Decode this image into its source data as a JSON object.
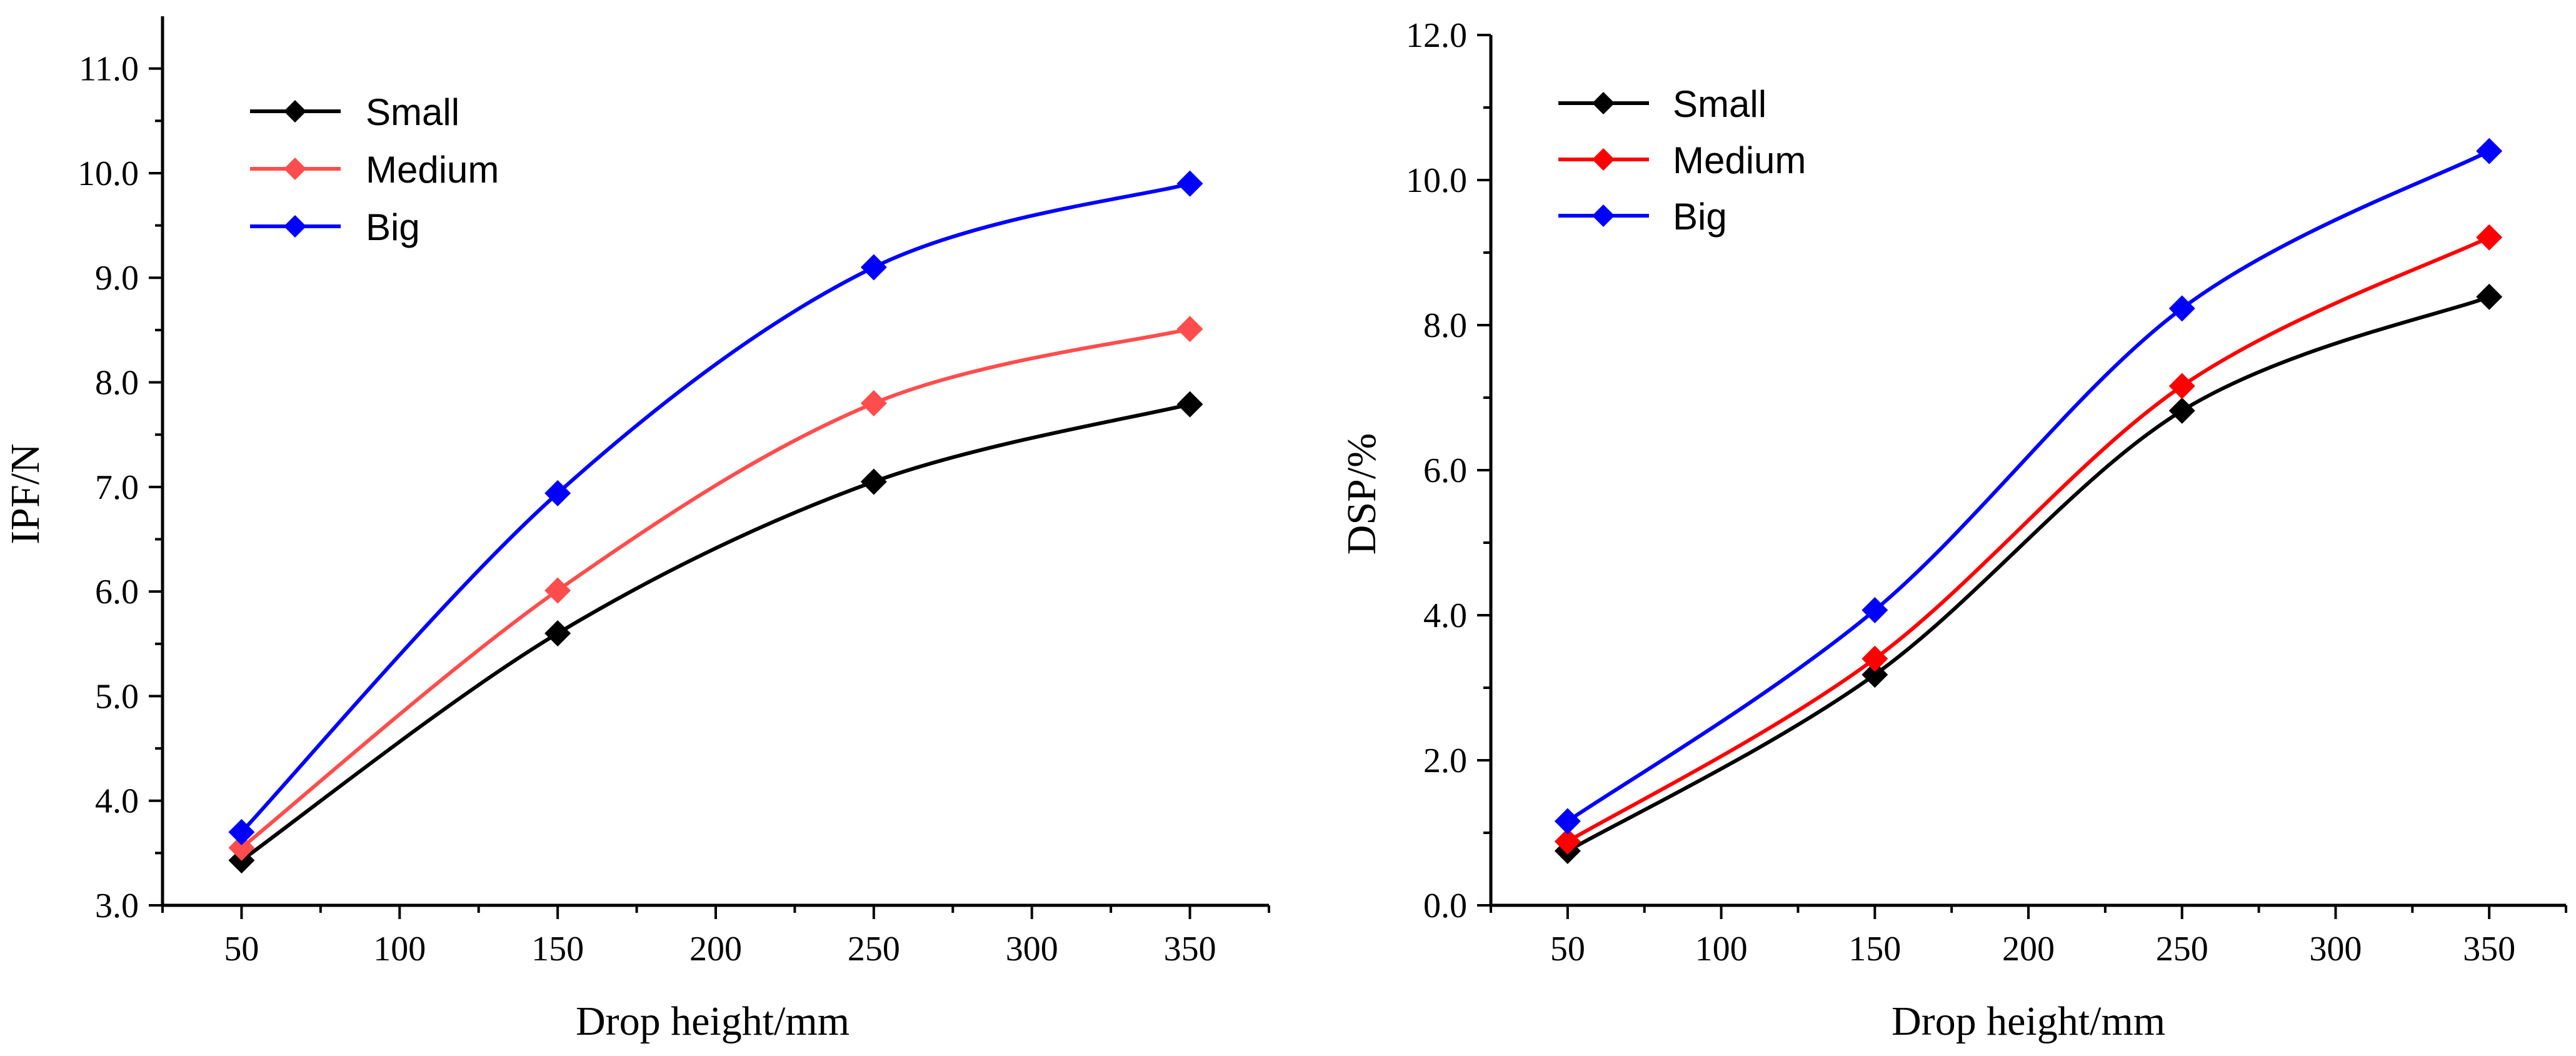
{
  "chart_data": [
    {
      "type": "line",
      "xlabel": "Drop height/mm",
      "ylabel": "IPF/N",
      "xlim": [
        25,
        375
      ],
      "ylim": [
        3.0,
        11.5
      ],
      "xticks": [
        "50",
        "100",
        "150",
        "200",
        "250",
        "300",
        "350"
      ],
      "xtick_values": [
        50,
        100,
        150,
        200,
        250,
        300,
        350
      ],
      "yticks": [
        "3.0",
        "4.0",
        "5.0",
        "6.0",
        "7.0",
        "8.0",
        "9.0",
        "10.0",
        "11.0"
      ],
      "ytick_values": [
        3,
        4,
        5,
        6,
        7,
        8,
        9,
        10,
        11
      ],
      "legend_position": "top-left",
      "x": [
        50,
        150,
        250,
        350
      ],
      "series": [
        {
          "name": "Small",
          "color": "#000000",
          "values": [
            3.43,
            5.6,
            7.05,
            7.79
          ]
        },
        {
          "name": "Medium",
          "color": "#ff4d4d",
          "values": [
            3.55,
            6.01,
            7.8,
            8.51
          ]
        },
        {
          "name": "Big",
          "color": "#0000ff",
          "values": [
            3.7,
            6.94,
            9.1,
            9.9
          ]
        }
      ]
    },
    {
      "type": "line",
      "xlabel": "Drop height/mm",
      "ylabel": "DSP/%",
      "xlim": [
        25,
        375
      ],
      "ylim": [
        0.0,
        12.0
      ],
      "xticks": [
        "50",
        "100",
        "150",
        "200",
        "250",
        "300",
        "350"
      ],
      "xtick_values": [
        50,
        100,
        150,
        200,
        250,
        300,
        350
      ],
      "yticks": [
        "0.0",
        "2.0",
        "4.0",
        "6.0",
        "8.0",
        "10.0",
        "12.0"
      ],
      "ytick_values": [
        0,
        2,
        4,
        6,
        8,
        10,
        12
      ],
      "legend_position": "top-left",
      "x": [
        50,
        150,
        250,
        350
      ],
      "series": [
        {
          "name": "Small",
          "color": "#000000",
          "values": [
            0.75,
            3.18,
            6.82,
            8.39
          ]
        },
        {
          "name": "Medium",
          "color": "#ff0000",
          "values": [
            0.88,
            3.4,
            7.16,
            9.21
          ]
        },
        {
          "name": "Big",
          "color": "#0000ff",
          "values": [
            1.16,
            4.07,
            8.23,
            10.4
          ]
        }
      ]
    }
  ]
}
